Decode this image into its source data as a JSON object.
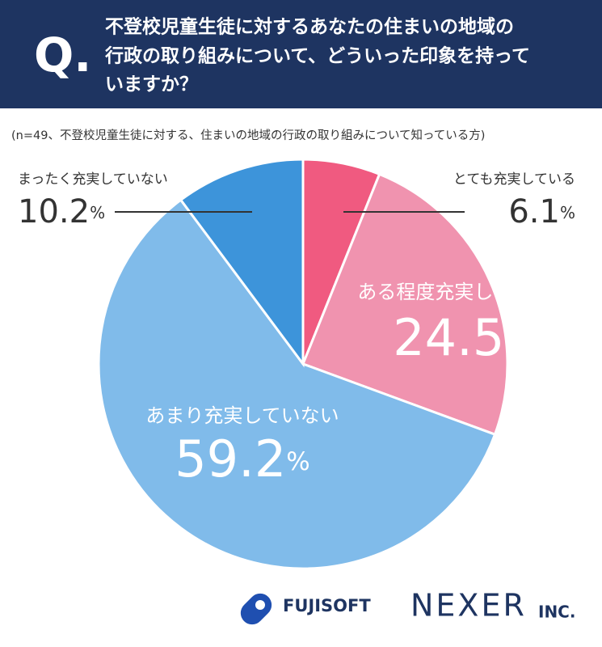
{
  "chart_data": {
    "type": "pie",
    "question_mark": "Q.",
    "title_lines": [
      "不登校児童生徒に対するあなたの住まいの地域の",
      "行政の取り組みについて、どういった印象を持って",
      "いますか？"
    ],
    "subtitle": "(n=49、不登校児童生徒に対する、住まいの地域の行政の取り組みについて知っている方)",
    "categories": [
      "とても充実している",
      "ある程度充実している",
      "あまり充実していない",
      "まったく充実していない"
    ],
    "values": [
      6.1,
      24.5,
      59.2,
      10.2
    ],
    "unit": "%",
    "colors": [
      "#f05a80",
      "#f093af",
      "#80bbea",
      "#3d94da"
    ],
    "logos": {
      "left": "FUJISOFT",
      "right": "NEXER",
      "right_suffix": "INC."
    }
  }
}
